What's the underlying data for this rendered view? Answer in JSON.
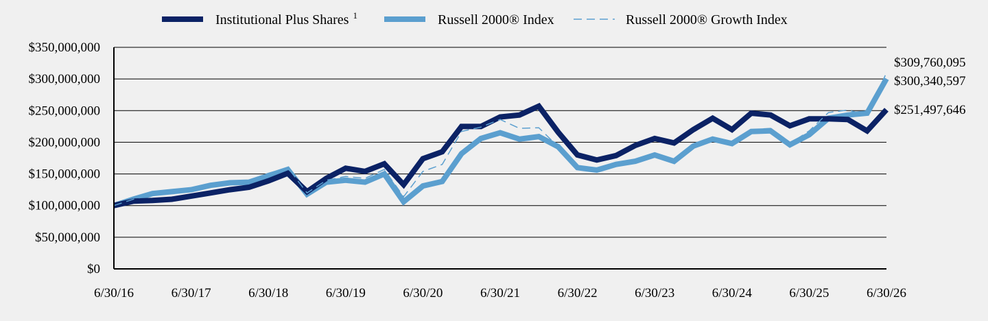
{
  "chart_data": {
    "type": "line",
    "title": "",
    "xlabel": "",
    "ylabel": "",
    "ylim": [
      0,
      350000000
    ],
    "yticks": [
      {
        "value": 0,
        "label": "$0"
      },
      {
        "value": 50000000,
        "label": "$50,000,000"
      },
      {
        "value": 100000000,
        "label": "$100,000,000"
      },
      {
        "value": 150000000,
        "label": "$150,000,000"
      },
      {
        "value": 200000000,
        "label": "$200,000,000"
      },
      {
        "value": 250000000,
        "label": "$250,000,000"
      },
      {
        "value": 300000000,
        "label": "$300,000,000"
      },
      {
        "value": 350000000,
        "label": "$350,000,000"
      }
    ],
    "xticks": [
      "6/30/16",
      "6/30/17",
      "6/30/18",
      "6/30/19",
      "6/30/20",
      "6/30/21",
      "6/30/22",
      "6/30/23",
      "6/30/24",
      "6/30/25",
      "6/30/26"
    ],
    "grid": true,
    "legend": "top",
    "x": [
      "6/30/16",
      "9/30/16",
      "12/31/16",
      "3/31/17",
      "6/30/17",
      "9/30/17",
      "12/31/17",
      "3/31/18",
      "6/30/18",
      "9/30/18",
      "12/31/18",
      "3/31/19",
      "6/30/19",
      "9/30/19",
      "12/31/19",
      "3/31/20",
      "6/30/20",
      "9/30/20",
      "12/31/20",
      "3/31/21",
      "6/30/21",
      "9/30/21",
      "12/31/21",
      "3/31/22",
      "6/30/22",
      "9/30/22",
      "12/31/22",
      "3/31/23",
      "6/30/23",
      "9/30/23",
      "12/31/23",
      "3/31/24",
      "6/30/24",
      "9/30/24",
      "12/31/24",
      "3/31/25",
      "6/30/25",
      "9/30/25",
      "12/31/25",
      "3/31/26",
      "6/30/26"
    ],
    "series": [
      {
        "name": "Institutional Plus Shares",
        "name_sup": "1",
        "color": "#0b2265",
        "style": "solid-thick",
        "end_label": "$251,497,646",
        "values": [
          100000000,
          107000000,
          108000000,
          110000000,
          115000000,
          120000000,
          125000000,
          129000000,
          139000000,
          151000000,
          122000000,
          143000000,
          159000000,
          154000000,
          166000000,
          133000000,
          174000000,
          185000000,
          225000000,
          225000000,
          240000000,
          243000000,
          257000000,
          216000000,
          180000000,
          172000000,
          179000000,
          195000000,
          206000000,
          199000000,
          220000000,
          238000000,
          220000000,
          246000000,
          243000000,
          226000000,
          237000000,
          237000000,
          236000000,
          218000000,
          251497646
        ]
      },
      {
        "name": "Russell 2000® Index",
        "color": "#5b9fcf",
        "style": "solid-thick",
        "end_label": "$300,340,597",
        "values": [
          100000000,
          110000000,
          119000000,
          122000000,
          125000000,
          132000000,
          136000000,
          137000000,
          147000000,
          157000000,
          118000000,
          137000000,
          140000000,
          137000000,
          150000000,
          106000000,
          131000000,
          138000000,
          182000000,
          206000000,
          215000000,
          205000000,
          209000000,
          193000000,
          160000000,
          156000000,
          165000000,
          170000000,
          180000000,
          170000000,
          194000000,
          205000000,
          198000000,
          217000000,
          218000000,
          196000000,
          212000000,
          238000000,
          243000000,
          246000000,
          300340597
        ]
      },
      {
        "name": "Russell 2000® Growth Index",
        "color": "#5b9fcf",
        "style": "dashed-thin",
        "end_label": "$309,760,095",
        "values": [
          100000000,
          110000000,
          117000000,
          120000000,
          124000000,
          131000000,
          137000000,
          140000000,
          151000000,
          160000000,
          120000000,
          140000000,
          146000000,
          143000000,
          157000000,
          114000000,
          154000000,
          165000000,
          217000000,
          224000000,
          236000000,
          222000000,
          223000000,
          193000000,
          160000000,
          157000000,
          165000000,
          171000000,
          181000000,
          170000000,
          196000000,
          206000000,
          198000000,
          220000000,
          222000000,
          198000000,
          218000000,
          247000000,
          251000000,
          243000000,
          309760095
        ]
      }
    ]
  }
}
